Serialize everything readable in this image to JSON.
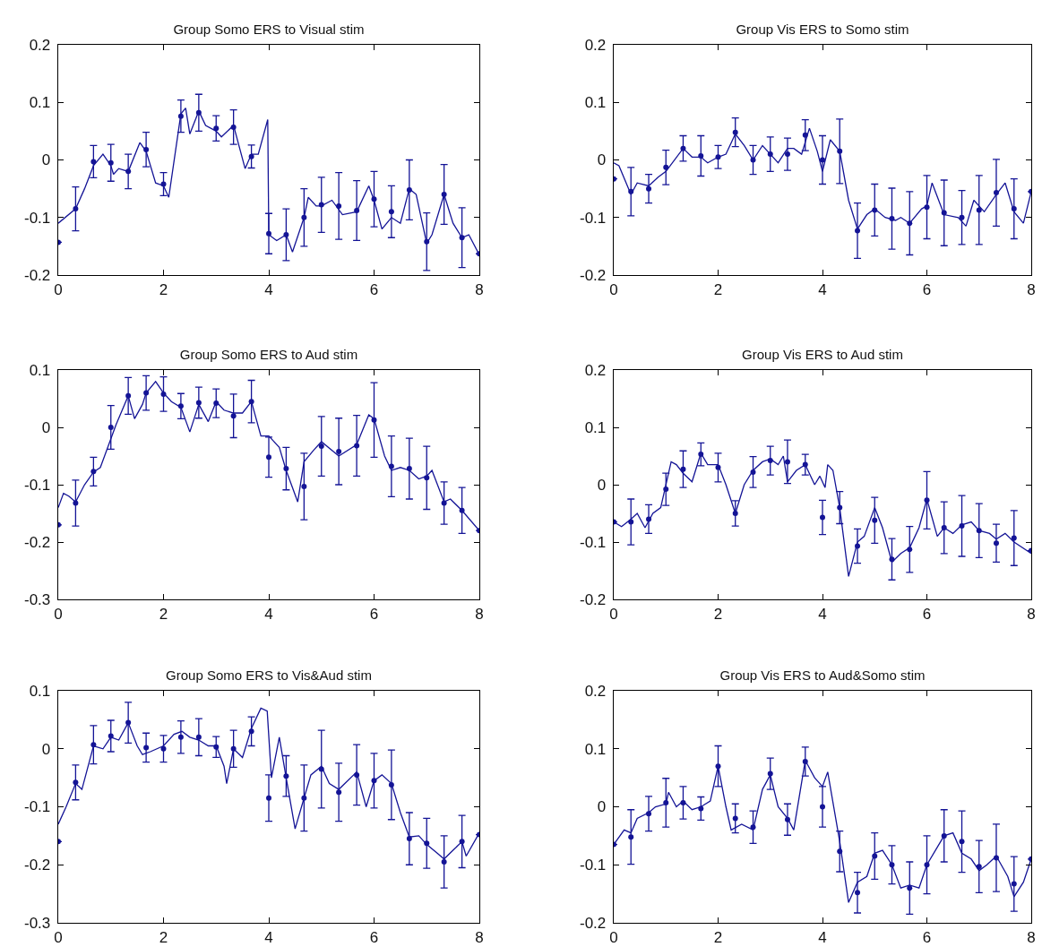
{
  "chart_data": [
    {
      "type": "line",
      "title": "Group Somo ERS to Visual stim",
      "xlim": [
        0,
        8
      ],
      "xticks": [
        0,
        2,
        4,
        6,
        8
      ],
      "ylim": [
        -0.2,
        0.2
      ],
      "yticks": [
        -0.2,
        -0.1,
        0,
        0.1,
        0.2
      ],
      "series": [
        {
          "type": "line",
          "color": "#141496",
          "line_style": "solid",
          "x": [
            0,
            0.33,
            0.5,
            0.67,
            0.85,
            1,
            1.05,
            1.15,
            1.33,
            1.55,
            1.67,
            1.85,
            2,
            2.1,
            2.33,
            2.42,
            2.5,
            2.67,
            2.8,
            3,
            3.1,
            3.33,
            3.55,
            3.67,
            3.8,
            3.98,
            4,
            4.15,
            4.33,
            4.45,
            4.67,
            4.75,
            4.9,
            5,
            5.2,
            5.4,
            5.67,
            5.9,
            6,
            6.15,
            6.33,
            6.5,
            6.67,
            6.8,
            7,
            7.1,
            7.33,
            7.5,
            7.67,
            7.8,
            8
          ],
          "values": [
            -0.11,
            -0.085,
            -0.05,
            -0.01,
            0.01,
            -0.01,
            -0.025,
            -0.015,
            -0.02,
            0.03,
            0.015,
            -0.04,
            -0.045,
            -0.065,
            0.08,
            0.09,
            0.045,
            0.085,
            0.06,
            0.05,
            0.04,
            0.06,
            -0.015,
            0.01,
            0.01,
            0.07,
            -0.13,
            -0.14,
            -0.13,
            -0.16,
            -0.1,
            -0.065,
            -0.08,
            -0.08,
            -0.07,
            -0.095,
            -0.09,
            -0.045,
            -0.07,
            -0.12,
            -0.1,
            -0.11,
            -0.05,
            -0.06,
            -0.145,
            -0.13,
            -0.06,
            -0.11,
            -0.135,
            -0.13,
            -0.165
          ]
        },
        {
          "type": "scatter",
          "color": "#141496",
          "marker": "circle",
          "x": [
            0,
            0.33,
            0.67,
            1,
            1.33,
            1.67,
            2,
            2.33,
            2.67,
            3,
            3.33,
            3.67,
            4,
            4.33,
            4.67,
            5,
            5.33,
            5.67,
            6,
            6.33,
            6.67,
            7,
            7.33,
            7.67,
            8
          ],
          "values": [
            -0.143,
            -0.085,
            -0.003,
            -0.005,
            -0.02,
            0.018,
            -0.042,
            0.076,
            0.082,
            0.055,
            0.057,
            0.006,
            -0.128,
            -0.13,
            -0.1,
            -0.078,
            -0.08,
            -0.088,
            -0.068,
            -0.09,
            -0.052,
            -0.142,
            -0.06,
            -0.135,
            -0.163
          ],
          "errors": [
            null,
            0.038,
            0.028,
            0.032,
            0.03,
            0.03,
            0.02,
            0.028,
            0.032,
            0.022,
            0.03,
            0.02,
            0.035,
            0.045,
            0.05,
            0.048,
            0.058,
            0.052,
            0.048,
            0.045,
            0.052,
            0.05,
            0.052,
            0.052,
            null
          ]
        }
      ]
    },
    {
      "type": "line",
      "title": "Group Vis ERS to Somo stim",
      "xlim": [
        0,
        8
      ],
      "xticks": [
        0,
        2,
        4,
        6,
        8
      ],
      "ylim": [
        -0.2,
        0.2
      ],
      "yticks": [
        -0.2,
        -0.1,
        0,
        0.1,
        0.2
      ],
      "series": [
        {
          "type": "line",
          "color": "#141496",
          "line_style": "solid",
          "x": [
            0,
            0.1,
            0.33,
            0.45,
            0.67,
            0.85,
            1,
            1.33,
            1.5,
            1.67,
            1.8,
            2,
            2.15,
            2.33,
            2.5,
            2.67,
            2.85,
            3,
            3.15,
            3.33,
            3.45,
            3.6,
            3.75,
            3.9,
            4,
            4.15,
            4.33,
            4.5,
            4.67,
            4.85,
            5,
            5.2,
            5.4,
            5.5,
            5.67,
            5.9,
            6,
            6.1,
            6.33,
            6.6,
            6.75,
            6.9,
            7.1,
            7.33,
            7.5,
            7.67,
            7.85,
            8
          ],
          "values": [
            -0.005,
            -0.01,
            -0.06,
            -0.04,
            -0.045,
            -0.03,
            -0.02,
            0.02,
            0.005,
            0.005,
            -0.005,
            0.005,
            0.01,
            0.045,
            0.025,
            0,
            0.025,
            0.01,
            -0.005,
            0.02,
            0.02,
            0.01,
            0.055,
            0.015,
            -0.02,
            0.035,
            0.015,
            -0.07,
            -0.12,
            -0.095,
            -0.085,
            -0.1,
            -0.105,
            -0.1,
            -0.11,
            -0.085,
            -0.08,
            -0.04,
            -0.095,
            -0.1,
            -0.115,
            -0.07,
            -0.09,
            -0.06,
            -0.04,
            -0.09,
            -0.11,
            -0.055
          ]
        },
        {
          "type": "scatter",
          "color": "#141496",
          "marker": "circle",
          "x": [
            0,
            0.33,
            0.67,
            1,
            1.33,
            1.67,
            2,
            2.33,
            2.67,
            3,
            3.33,
            3.67,
            4,
            4.33,
            4.67,
            5,
            5.33,
            5.67,
            6,
            6.33,
            6.67,
            7,
            7.33,
            7.67,
            8
          ],
          "values": [
            -0.033,
            -0.055,
            -0.05,
            -0.013,
            0.02,
            0.007,
            0.005,
            0.048,
            0,
            0.01,
            0.01,
            0.043,
            0,
            0.015,
            -0.123,
            -0.087,
            -0.102,
            -0.11,
            -0.082,
            -0.092,
            -0.1,
            -0.087,
            -0.057,
            -0.085,
            -0.055
          ],
          "errors": [
            null,
            0.042,
            0.025,
            0.03,
            0.022,
            0.035,
            0.02,
            0.025,
            0.025,
            0.03,
            0.028,
            0.027,
            0.042,
            0.056,
            0.048,
            0.045,
            0.053,
            0.055,
            0.055,
            0.057,
            0.047,
            0.06,
            0.058,
            0.052,
            null
          ]
        }
      ]
    },
    {
      "type": "line",
      "title": "Group Somo ERS to Aud stim",
      "xlim": [
        0,
        8
      ],
      "xticks": [
        0,
        2,
        4,
        6,
        8
      ],
      "ylim": [
        -0.3,
        0.1
      ],
      "yticks": [
        -0.3,
        -0.2,
        -0.1,
        0,
        0.1
      ],
      "series": [
        {
          "type": "line",
          "color": "#141496",
          "line_style": "solid",
          "x": [
            0,
            0.1,
            0.2,
            0.33,
            0.5,
            0.67,
            0.8,
            1,
            1.1,
            1.33,
            1.45,
            1.6,
            1.67,
            1.85,
            2,
            2.15,
            2.33,
            2.5,
            2.67,
            2.85,
            3,
            3.15,
            3.33,
            3.5,
            3.67,
            3.85,
            4,
            4.2,
            4.33,
            4.55,
            4.67,
            4.85,
            5,
            5.33,
            5.67,
            5.9,
            6,
            6.2,
            6.33,
            6.5,
            6.67,
            6.85,
            7,
            7.1,
            7.33,
            7.45,
            7.67,
            8
          ],
          "values": [
            -0.14,
            -0.115,
            -0.12,
            -0.13,
            -0.1,
            -0.078,
            -0.07,
            -0.02,
            0.005,
            0.055,
            0.015,
            0.04,
            0.06,
            0.08,
            0.06,
            0.045,
            0.035,
            -0.008,
            0.04,
            0.01,
            0.045,
            0.03,
            0.025,
            0.025,
            0.045,
            -0.015,
            -0.015,
            -0.035,
            -0.075,
            -0.13,
            -0.06,
            -0.04,
            -0.025,
            -0.05,
            -0.03,
            0.022,
            0.015,
            -0.05,
            -0.075,
            -0.07,
            -0.075,
            -0.09,
            -0.085,
            -0.075,
            -0.13,
            -0.125,
            -0.145,
            -0.18
          ]
        },
        {
          "type": "scatter",
          "color": "#141496",
          "marker": "circle",
          "x": [
            0,
            0.33,
            0.67,
            1,
            1.33,
            1.67,
            2,
            2.33,
            2.67,
            3,
            3.33,
            3.67,
            4,
            4.33,
            4.67,
            5,
            5.33,
            5.67,
            6,
            6.33,
            6.67,
            7,
            7.33,
            7.67,
            8
          ],
          "values": [
            -0.17,
            -0.132,
            -0.077,
            0,
            0.055,
            0.06,
            0.058,
            0.037,
            0.043,
            0.042,
            0.02,
            0.045,
            -0.052,
            -0.072,
            -0.103,
            -0.033,
            -0.042,
            -0.032,
            0.013,
            -0.068,
            -0.072,
            -0.088,
            -0.132,
            -0.145,
            -0.18
          ],
          "errors": [
            null,
            0.04,
            0.025,
            0.038,
            0.032,
            0.03,
            0.03,
            0.022,
            0.027,
            0.025,
            0.038,
            0.037,
            0.035,
            0.037,
            0.058,
            0.052,
            0.058,
            0.053,
            0.065,
            0.053,
            0.053,
            0.055,
            0.037,
            0.04,
            null
          ]
        }
      ]
    },
    {
      "type": "line",
      "title": "Group Vis ERS to Aud stim",
      "xlim": [
        0,
        8
      ],
      "xticks": [
        0,
        2,
        4,
        6,
        8
      ],
      "ylim": [
        -0.2,
        0.2
      ],
      "yticks": [
        -0.2,
        -0.1,
        0,
        0.1,
        0.2
      ],
      "series": [
        {
          "type": "line",
          "color": "#141496",
          "line_style": "solid",
          "x": [
            0,
            0.15,
            0.33,
            0.45,
            0.6,
            0.75,
            0.9,
            1.1,
            1.2,
            1.33,
            1.5,
            1.67,
            1.8,
            2,
            2.15,
            2.33,
            2.5,
            2.67,
            2.85,
            3,
            3.15,
            3.25,
            3.33,
            3.5,
            3.67,
            3.85,
            3.95,
            4.05,
            4.1,
            4.2,
            4.33,
            4.5,
            4.67,
            4.8,
            5,
            5.15,
            5.33,
            5.5,
            5.67,
            5.85,
            6,
            6.2,
            6.33,
            6.5,
            6.67,
            6.85,
            7,
            7.2,
            7.33,
            7.5,
            7.67,
            8
          ],
          "values": [
            -0.065,
            -0.073,
            -0.06,
            -0.05,
            -0.075,
            -0.05,
            -0.04,
            0.04,
            0.035,
            0.02,
            0.005,
            0.055,
            0.035,
            0.035,
            0,
            -0.05,
            0,
            0.025,
            0.04,
            0.045,
            0.035,
            0.05,
            0.005,
            0.025,
            0.035,
            0,
            0.015,
            -0.005,
            0.035,
            0.025,
            -0.04,
            -0.16,
            -0.1,
            -0.09,
            -0.04,
            -0.075,
            -0.135,
            -0.12,
            -0.11,
            -0.075,
            -0.025,
            -0.09,
            -0.075,
            -0.085,
            -0.07,
            -0.065,
            -0.08,
            -0.085,
            -0.095,
            -0.085,
            -0.1,
            -0.12
          ]
        },
        {
          "type": "scatter",
          "color": "#141496",
          "marker": "circle",
          "x": [
            0,
            0.33,
            0.67,
            1,
            1.33,
            1.67,
            2,
            2.33,
            2.67,
            3,
            3.33,
            3.67,
            4,
            4.33,
            4.67,
            5,
            5.33,
            5.67,
            6,
            6.33,
            6.67,
            7,
            7.33,
            7.67,
            8
          ],
          "values": [
            -0.065,
            -0.065,
            -0.06,
            -0.008,
            0.027,
            0.053,
            0.03,
            -0.05,
            0.022,
            0.042,
            0.04,
            0.035,
            -0.057,
            -0.04,
            -0.107,
            -0.062,
            -0.13,
            -0.113,
            -0.027,
            -0.075,
            -0.072,
            -0.08,
            -0.102,
            -0.093,
            -0.115
          ],
          "errors": [
            null,
            0.04,
            0.025,
            0.028,
            0.032,
            0.02,
            0.025,
            0.022,
            0.027,
            0.025,
            0.038,
            0.018,
            0.03,
            0.028,
            0.03,
            0.04,
            0.036,
            0.04,
            0.05,
            0.045,
            0.053,
            0.047,
            0.033,
            0.048,
            null
          ]
        }
      ]
    },
    {
      "type": "line",
      "title": "Group Somo ERS to Vis&Aud stim",
      "xlim": [
        0,
        8
      ],
      "xticks": [
        0,
        2,
        4,
        6,
        8
      ],
      "ylim": [
        -0.3,
        0.1
      ],
      "yticks": [
        -0.3,
        -0.2,
        -0.1,
        0,
        0.1
      ],
      "series": [
        {
          "type": "line",
          "color": "#141496",
          "line_style": "solid",
          "x": [
            0,
            0.15,
            0.33,
            0.45,
            0.67,
            0.85,
            1,
            1.15,
            1.33,
            1.5,
            1.6,
            1.75,
            2,
            2.2,
            2.35,
            2.5,
            2.67,
            2.85,
            3,
            3.15,
            3.2,
            3.33,
            3.5,
            3.67,
            3.85,
            3.97,
            4.05,
            4.2,
            4.33,
            4.5,
            4.67,
            4.8,
            5,
            5.15,
            5.33,
            5.67,
            5.85,
            6,
            6.15,
            6.33,
            6.5,
            6.67,
            6.85,
            7,
            7.2,
            7.33,
            7.5,
            7.67,
            7.75,
            8
          ],
          "values": [
            -0.13,
            -0.1,
            -0.06,
            -0.07,
            0.005,
            0,
            0.02,
            0.015,
            0.045,
            0.005,
            -0.01,
            -0.005,
            0.005,
            0.025,
            0.03,
            0.02,
            0.015,
            0.005,
            0.005,
            -0.03,
            -0.06,
            0,
            -0.015,
            0.035,
            0.07,
            0.065,
            -0.05,
            0.02,
            -0.05,
            -0.138,
            -0.085,
            -0.045,
            -0.03,
            -0.06,
            -0.07,
            -0.04,
            -0.1,
            -0.055,
            -0.045,
            -0.06,
            -0.11,
            -0.152,
            -0.15,
            -0.165,
            -0.18,
            -0.19,
            -0.175,
            -0.16,
            -0.185,
            -0.145
          ]
        },
        {
          "type": "scatter",
          "color": "#141496",
          "marker": "circle",
          "x": [
            0,
            0.33,
            0.67,
            1,
            1.33,
            1.67,
            2,
            2.33,
            2.67,
            3,
            3.33,
            3.67,
            4,
            4.33,
            4.67,
            5,
            5.33,
            5.67,
            6,
            6.33,
            6.67,
            7,
            7.33,
            7.67,
            8
          ],
          "values": [
            -0.16,
            -0.058,
            0.007,
            0.022,
            0.045,
            0.002,
            0,
            0.02,
            0.02,
            0.003,
            0,
            0.03,
            -0.085,
            -0.047,
            -0.085,
            -0.035,
            -0.075,
            -0.045,
            -0.055,
            -0.062,
            -0.155,
            -0.163,
            -0.195,
            -0.16,
            -0.148
          ],
          "errors": [
            null,
            0.03,
            0.033,
            0.027,
            0.035,
            0.025,
            0.023,
            0.028,
            0.032,
            0.018,
            0.032,
            0.025,
            0.04,
            0.035,
            0.057,
            0.067,
            0.05,
            0.052,
            0.047,
            0.06,
            0.045,
            0.043,
            0.045,
            0.045,
            null
          ]
        }
      ]
    },
    {
      "type": "line",
      "title": "Group Vis ERS to Aud&Somo stim",
      "xlim": [
        0,
        8
      ],
      "xticks": [
        0,
        2,
        4,
        6,
        8
      ],
      "ylim": [
        -0.2,
        0.2
      ],
      "yticks": [
        -0.2,
        -0.1,
        0,
        0.1,
        0.2
      ],
      "series": [
        {
          "type": "line",
          "color": "#141496",
          "line_style": "solid",
          "x": [
            0,
            0.2,
            0.33,
            0.45,
            0.67,
            0.8,
            1,
            1.05,
            1.2,
            1.33,
            1.5,
            1.67,
            1.85,
            2,
            2.15,
            2.25,
            2.45,
            2.67,
            2.85,
            3,
            3.15,
            3.33,
            3.45,
            3.67,
            3.85,
            4,
            4.1,
            4.33,
            4.5,
            4.67,
            4.85,
            5,
            5.15,
            5.33,
            5.5,
            5.67,
            5.85,
            6,
            6.33,
            6.5,
            6.67,
            6.85,
            7,
            7.15,
            7.33,
            7.55,
            7.67,
            7.85,
            8
          ],
          "values": [
            -0.065,
            -0.04,
            -0.045,
            -0.02,
            -0.01,
            0,
            0.005,
            0.025,
            0,
            0.01,
            -0.005,
            0,
            0.01,
            0.07,
            0,
            -0.04,
            -0.03,
            -0.04,
            0.03,
            0.055,
            0,
            -0.02,
            -0.04,
            0.08,
            0.05,
            0.035,
            0.06,
            -0.06,
            -0.165,
            -0.13,
            -0.12,
            -0.08,
            -0.075,
            -0.1,
            -0.14,
            -0.135,
            -0.14,
            -0.1,
            -0.05,
            -0.045,
            -0.08,
            -0.09,
            -0.11,
            -0.1,
            -0.085,
            -0.12,
            -0.155,
            -0.13,
            -0.09
          ]
        },
        {
          "type": "scatter",
          "color": "#141496",
          "marker": "circle",
          "x": [
            0,
            0.33,
            0.67,
            1,
            1.33,
            1.67,
            2,
            2.33,
            2.67,
            3,
            3.33,
            3.67,
            4,
            4.33,
            4.67,
            5,
            5.33,
            5.67,
            6,
            6.33,
            6.67,
            7,
            7.33,
            7.67,
            8
          ],
          "values": [
            -0.065,
            -0.052,
            -0.012,
            0.007,
            0.007,
            -0.003,
            0.07,
            -0.02,
            -0.035,
            0.057,
            -0.022,
            0.078,
            0,
            -0.077,
            -0.148,
            -0.085,
            -0.1,
            -0.14,
            -0.1,
            -0.05,
            -0.06,
            -0.103,
            -0.088,
            -0.133,
            -0.09
          ],
          "errors": [
            null,
            0.047,
            0.03,
            0.042,
            0.028,
            0.02,
            0.035,
            0.025,
            0.028,
            0.027,
            0.027,
            0.025,
            0.035,
            0.035,
            0.035,
            0.04,
            0.033,
            0.045,
            0.05,
            0.045,
            0.053,
            0.045,
            0.058,
            0.047,
            null
          ]
        }
      ]
    }
  ]
}
